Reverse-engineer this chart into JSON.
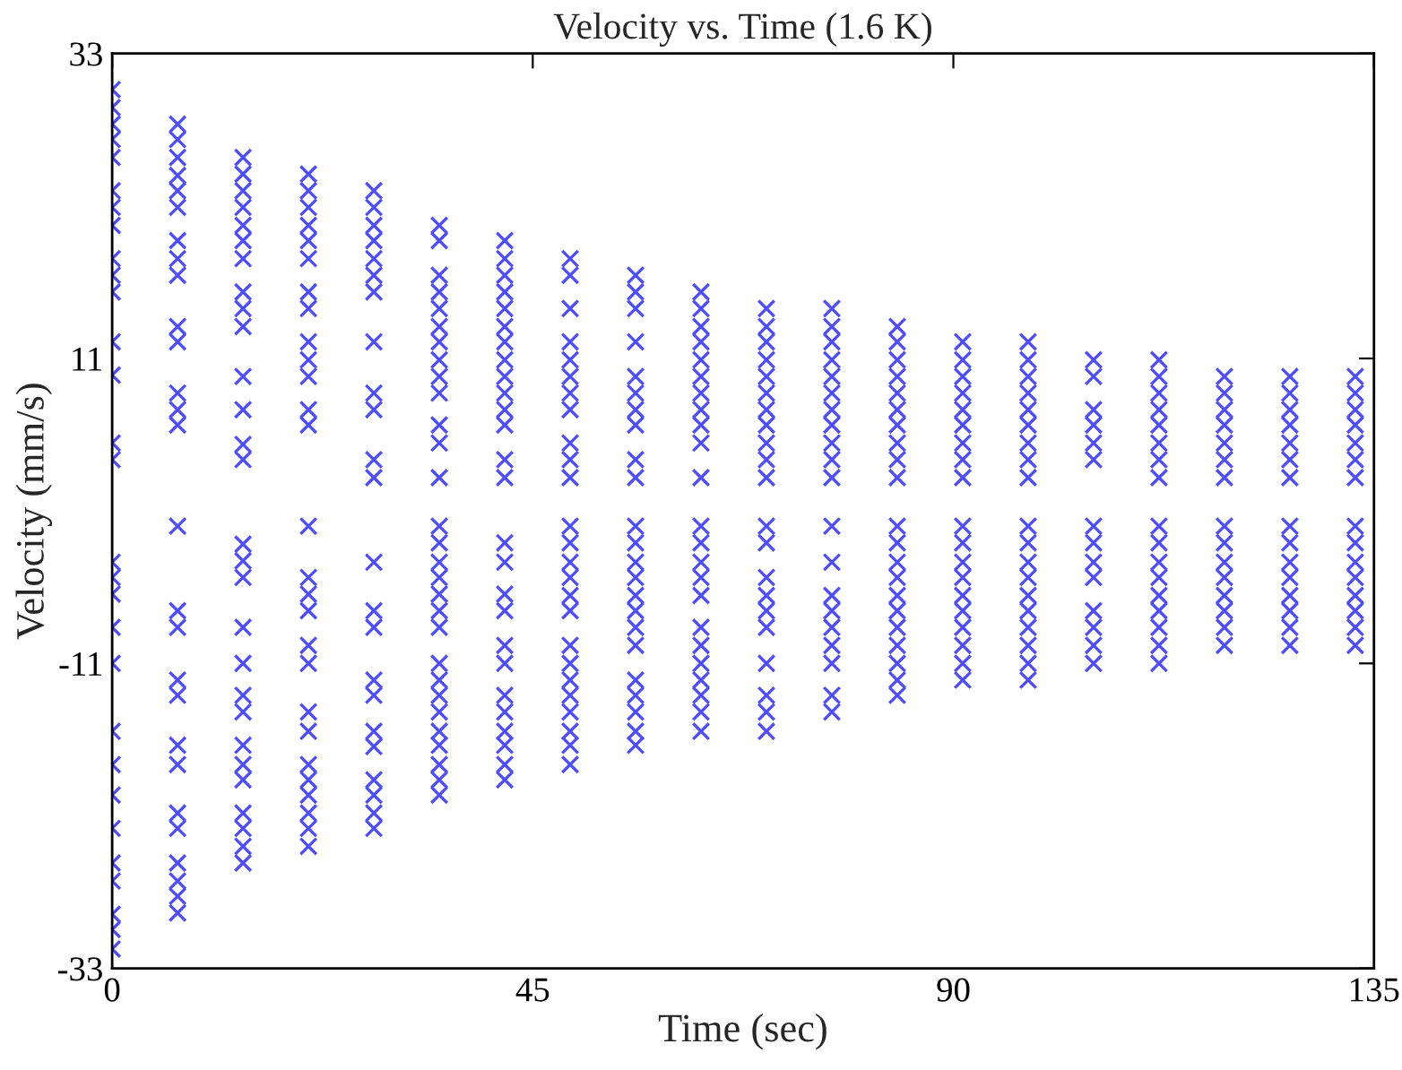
{
  "chart_data": {
    "type": "scatter",
    "title": "Velocity vs. Time (1.6 K)",
    "xlabel": "Time (sec)",
    "ylabel": "Velocity (mm/s)",
    "xlim": [
      0,
      135
    ],
    "xticks": [
      0,
      45,
      90,
      135
    ],
    "ylim": [
      -33,
      33
    ],
    "yticks": [
      -33,
      -11,
      11,
      33
    ],
    "grid": false,
    "marker": "cross",
    "series": [
      {
        "color": "#4d4dff",
        "x": [
          0,
          0,
          0,
          0,
          0,
          0,
          0,
          0,
          0,
          0,
          0,
          0,
          0,
          0,
          0,
          0,
          0,
          0,
          0,
          0,
          0,
          0,
          0,
          0,
          0,
          0,
          0,
          0,
          0
        ],
        "values": [
          30.4,
          29.1,
          27.9,
          26.8,
          25.5,
          23.1,
          21.9,
          20.6,
          18.2,
          17.0,
          15.8,
          12.2,
          9.8,
          4.9,
          3.7,
          -3.7,
          -4.8,
          -6.0,
          -8.4,
          -11.0,
          -15.9,
          -18.3,
          -20.5,
          -22.9,
          -25.4,
          -26.7,
          -29.1,
          -30.2,
          -31.6
        ]
      },
      {
        "color": "#4d4dff",
        "x": [
          7,
          7,
          7,
          7,
          7,
          7,
          7,
          7,
          7,
          7,
          7,
          7,
          7,
          7,
          7,
          7,
          7,
          7,
          7,
          7,
          7,
          7,
          7,
          7,
          7,
          7,
          7
        ],
        "values": [
          27.9,
          26.8,
          25.5,
          24.2,
          23.1,
          21.9,
          19.5,
          18.2,
          17.0,
          13.3,
          12.2,
          8.5,
          7.3,
          6.2,
          -1.1,
          -7.2,
          -8.4,
          -12.2,
          -13.3,
          -16.9,
          -18.3,
          -21.8,
          -22.9,
          -25.4,
          -26.7,
          -27.8,
          -29.0
        ]
      },
      {
        "color": "#4d4dff",
        "x": [
          14,
          14,
          14,
          14,
          14,
          14,
          14,
          14,
          14,
          14,
          14,
          14,
          14,
          14,
          14,
          14,
          14,
          14,
          14,
          14,
          14,
          14,
          14,
          14,
          14,
          14,
          14,
          14
        ],
        "values": [
          25.5,
          24.3,
          23.1,
          21.9,
          20.6,
          19.5,
          18.2,
          15.8,
          14.6,
          13.3,
          9.7,
          7.3,
          4.8,
          3.7,
          -2.4,
          -3.6,
          -4.8,
          -8.4,
          -11.0,
          -13.3,
          -14.5,
          -16.9,
          -18.3,
          -19.4,
          -21.8,
          -22.9,
          -24.2,
          -25.4
        ]
      },
      {
        "color": "#4d4dff",
        "x": [
          21,
          21,
          21,
          21,
          21,
          21,
          21,
          21,
          21,
          21,
          21,
          21,
          21,
          21,
          21,
          21,
          21,
          21,
          21,
          21,
          21,
          21,
          21,
          21,
          21,
          21,
          21
        ],
        "values": [
          24.3,
          23.1,
          21.9,
          20.6,
          19.5,
          18.2,
          15.8,
          14.6,
          12.2,
          10.9,
          9.7,
          7.3,
          6.2,
          -1.1,
          -4.8,
          -6.0,
          -7.2,
          -9.7,
          -11.0,
          -14.5,
          -15.9,
          -18.3,
          -19.4,
          -20.5,
          -21.8,
          -22.9,
          -24.2
        ]
      },
      {
        "color": "#4d4dff",
        "x": [
          28,
          28,
          28,
          28,
          28,
          28,
          28,
          28,
          28,
          28,
          28,
          28,
          28,
          28,
          28,
          28,
          28,
          28,
          28,
          28,
          28,
          28,
          28
        ],
        "values": [
          23.1,
          21.9,
          20.6,
          19.5,
          18.2,
          17.0,
          15.8,
          12.2,
          8.5,
          7.3,
          3.7,
          2.4,
          -3.7,
          -7.2,
          -8.4,
          -12.2,
          -13.3,
          -15.9,
          -17.0,
          -19.4,
          -20.5,
          -21.8,
          -22.9
        ]
      },
      {
        "color": "#4d4dff",
        "x": [
          35,
          35,
          35,
          35,
          35,
          35,
          35,
          35,
          35,
          35,
          35,
          35,
          35,
          35,
          35,
          35,
          35,
          35,
          35,
          35,
          35,
          35,
          35,
          35,
          35,
          35,
          35,
          35,
          35
        ],
        "values": [
          20.6,
          19.5,
          17.0,
          15.8,
          14.6,
          13.3,
          12.2,
          10.9,
          9.7,
          8.5,
          6.2,
          4.9,
          2.4,
          -1.1,
          -2.3,
          -3.7,
          -4.8,
          -6.0,
          -7.2,
          -8.4,
          -11.0,
          -12.2,
          -13.3,
          -14.5,
          -15.9,
          -16.9,
          -18.3,
          -19.4,
          -20.5
        ]
      },
      {
        "color": "#4d4dff",
        "x": [
          42,
          42,
          42,
          42,
          42,
          42,
          42,
          42,
          42,
          42,
          42,
          42,
          42,
          42,
          42,
          42,
          42,
          42,
          42,
          42,
          42,
          42,
          42,
          42,
          42,
          42
        ],
        "values": [
          19.5,
          18.2,
          17.0,
          15.8,
          14.6,
          13.3,
          12.2,
          10.9,
          9.7,
          8.5,
          7.3,
          6.2,
          3.7,
          2.4,
          -2.3,
          -3.7,
          -6.0,
          -7.2,
          -9.7,
          -11.0,
          -13.3,
          -14.5,
          -15.9,
          -16.9,
          -18.3,
          -19.4
        ]
      },
      {
        "color": "#4d4dff",
        "x": [
          49,
          49,
          49,
          49,
          49,
          49,
          49,
          49,
          49,
          49,
          49,
          49,
          49,
          49,
          49,
          49,
          49,
          49,
          49,
          49,
          49,
          49,
          49,
          49,
          49
        ],
        "values": [
          18.2,
          17.0,
          14.6,
          12.2,
          10.9,
          9.7,
          8.5,
          7.3,
          4.9,
          3.7,
          2.4,
          -1.1,
          -2.3,
          -3.7,
          -4.8,
          -6.1,
          -7.2,
          -9.7,
          -11.0,
          -12.2,
          -13.3,
          -14.5,
          -15.9,
          -16.9,
          -18.3
        ]
      },
      {
        "color": "#4d4dff",
        "x": [
          56,
          56,
          56,
          56,
          56,
          56,
          56,
          56,
          56,
          56,
          56,
          56,
          56,
          56,
          56,
          56,
          56,
          56,
          56,
          56,
          56,
          56,
          56
        ],
        "values": [
          17.0,
          15.8,
          14.6,
          12.2,
          9.7,
          8.5,
          7.3,
          6.2,
          3.7,
          2.4,
          -1.1,
          -2.3,
          -3.7,
          -4.8,
          -6.1,
          -7.2,
          -8.4,
          -9.7,
          -12.2,
          -13.3,
          -14.5,
          -15.9,
          -16.9
        ]
      },
      {
        "color": "#4d4dff",
        "x": [
          63,
          63,
          63,
          63,
          63,
          63,
          63,
          63,
          63,
          63,
          63,
          63,
          63,
          63,
          63,
          63,
          63,
          63,
          63,
          63,
          63,
          63,
          63
        ],
        "values": [
          15.8,
          14.6,
          13.3,
          12.2,
          10.9,
          9.7,
          8.5,
          7.3,
          6.2,
          4.9,
          2.4,
          -1.1,
          -2.3,
          -3.7,
          -4.8,
          -6.1,
          -8.4,
          -9.7,
          -11.0,
          -12.2,
          -13.3,
          -14.5,
          -15.9
        ]
      },
      {
        "color": "#4d4dff",
        "x": [
          70,
          70,
          70,
          70,
          70,
          70,
          70,
          70,
          70,
          70,
          70,
          70,
          70,
          70,
          70,
          70,
          70,
          70,
          70,
          70,
          70
        ],
        "values": [
          14.6,
          13.3,
          12.2,
          10.9,
          9.7,
          8.5,
          7.3,
          6.2,
          4.9,
          3.7,
          2.4,
          -1.1,
          -2.3,
          -4.8,
          -6.1,
          -7.2,
          -8.4,
          -11.0,
          -13.3,
          -14.5,
          -15.9
        ]
      },
      {
        "color": "#4d4dff",
        "x": [
          77,
          77,
          77,
          77,
          77,
          77,
          77,
          77,
          77,
          77,
          77,
          77,
          77,
          77,
          77,
          77,
          77,
          77,
          77,
          77
        ],
        "values": [
          14.6,
          13.3,
          12.2,
          10.9,
          9.7,
          8.5,
          7.3,
          6.2,
          4.9,
          3.7,
          2.4,
          -1.1,
          -3.7,
          -6.1,
          -7.2,
          -8.4,
          -9.7,
          -11.0,
          -13.3,
          -14.5
        ]
      },
      {
        "color": "#4d4dff",
        "x": [
          84,
          84,
          84,
          84,
          84,
          84,
          84,
          84,
          84,
          84,
          84,
          84,
          84,
          84,
          84,
          84,
          84,
          84,
          84,
          84,
          84
        ],
        "values": [
          13.3,
          12.2,
          10.9,
          9.7,
          8.5,
          7.3,
          6.2,
          4.9,
          3.7,
          2.4,
          -1.1,
          -2.3,
          -3.7,
          -4.8,
          -6.1,
          -7.2,
          -8.4,
          -9.7,
          -11.0,
          -12.2,
          -13.3
        ]
      },
      {
        "color": "#4d4dff",
        "x": [
          91,
          91,
          91,
          91,
          91,
          91,
          91,
          91,
          91,
          91,
          91,
          91,
          91,
          91,
          91,
          91,
          91,
          91,
          91
        ],
        "values": [
          12.2,
          10.9,
          9.7,
          8.5,
          7.3,
          6.2,
          4.9,
          3.7,
          2.4,
          -1.1,
          -2.3,
          -3.7,
          -4.8,
          -6.1,
          -7.2,
          -8.4,
          -9.7,
          -11.0,
          -12.2
        ]
      },
      {
        "color": "#4d4dff",
        "x": [
          98,
          98,
          98,
          98,
          98,
          98,
          98,
          98,
          98,
          98,
          98,
          98,
          98,
          98,
          98,
          98,
          98,
          98,
          98
        ],
        "values": [
          12.2,
          10.9,
          9.7,
          8.5,
          7.3,
          6.2,
          4.9,
          3.7,
          2.4,
          -1.1,
          -2.3,
          -3.7,
          -4.8,
          -6.1,
          -7.2,
          -8.4,
          -9.7,
          -11.0,
          -12.2
        ]
      },
      {
        "color": "#4d4dff",
        "x": [
          105,
          105,
          105,
          105,
          105,
          105,
          105,
          105,
          105,
          105,
          105,
          105,
          105,
          105
        ],
        "values": [
          10.9,
          9.7,
          7.3,
          6.2,
          4.9,
          3.7,
          -1.1,
          -2.3,
          -3.7,
          -4.8,
          -7.2,
          -8.4,
          -9.7,
          -11.0
        ]
      },
      {
        "color": "#4d4dff",
        "x": [
          112,
          112,
          112,
          112,
          112,
          112,
          112,
          112,
          112,
          112,
          112,
          112,
          112,
          112,
          112,
          112,
          112
        ],
        "values": [
          10.9,
          9.7,
          8.5,
          7.3,
          6.2,
          4.9,
          3.7,
          2.4,
          -1.1,
          -2.3,
          -3.7,
          -4.8,
          -6.1,
          -7.2,
          -8.4,
          -9.7,
          -11.0
        ]
      },
      {
        "color": "#4d4dff",
        "x": [
          119,
          119,
          119,
          119,
          119,
          119,
          119,
          119,
          119,
          119,
          119,
          119,
          119,
          119,
          119
        ],
        "values": [
          9.7,
          8.5,
          7.3,
          6.2,
          4.9,
          3.7,
          2.4,
          -1.1,
          -2.3,
          -3.7,
          -4.8,
          -6.1,
          -7.2,
          -8.4,
          -9.7
        ]
      },
      {
        "color": "#4d4dff",
        "x": [
          126,
          126,
          126,
          126,
          126,
          126,
          126,
          126,
          126,
          126,
          126,
          126,
          126,
          126,
          126
        ],
        "values": [
          9.7,
          8.5,
          7.3,
          6.2,
          4.9,
          3.7,
          2.4,
          -1.1,
          -2.3,
          -3.7,
          -4.8,
          -6.1,
          -7.2,
          -8.4,
          -9.7
        ]
      },
      {
        "color": "#4d4dff",
        "x": [
          133,
          133,
          133,
          133,
          133,
          133,
          133,
          133,
          133,
          133,
          133,
          133,
          133,
          133,
          133
        ],
        "values": [
          9.7,
          8.5,
          7.3,
          6.2,
          4.9,
          3.7,
          2.4,
          -1.1,
          -2.3,
          -3.7,
          -4.8,
          -6.1,
          -7.2,
          -8.4,
          -9.7
        ]
      }
    ]
  }
}
